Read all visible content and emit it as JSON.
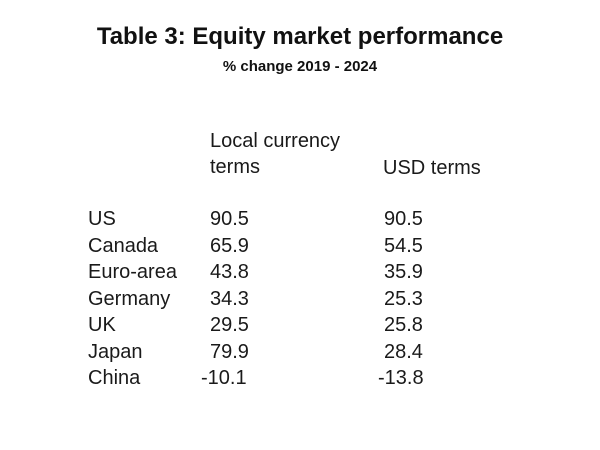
{
  "title": "Table 3: Equity market performance",
  "subtitle": "% change 2019 - 2024",
  "columns": {
    "local": "Local currency terms",
    "usd": "USD terms"
  },
  "rows": [
    {
      "country": "US",
      "local": "90.5",
      "usd": "90.5"
    },
    {
      "country": "Canada",
      "local": "65.9",
      "usd": "54.5"
    },
    {
      "country": "Euro-area",
      "local": "43.8",
      "usd": "35.9"
    },
    {
      "country": "Germany",
      "local": "34.3",
      "usd": "25.3"
    },
    {
      "country": "UK",
      "local": "29.5",
      "usd": "25.8"
    },
    {
      "country": "Japan",
      "local": "79.9",
      "usd": "28.4"
    },
    {
      "country": "China",
      "local": "-10.1",
      "usd": "-13.8"
    }
  ]
}
